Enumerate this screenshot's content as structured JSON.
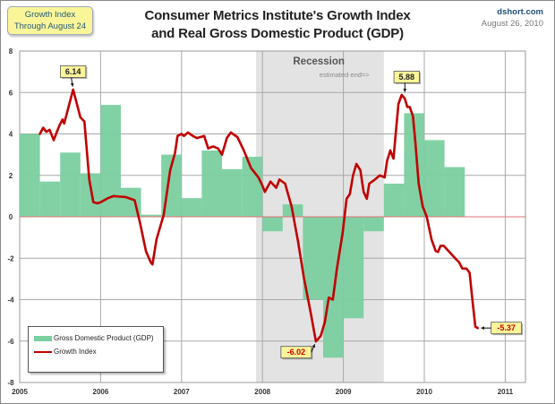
{
  "header": {
    "info_box_line1": "Growth Index",
    "info_box_line2": "Through August 24",
    "title_line1": "Consumer Metrics Institute's Growth Index",
    "title_line2": "and  Real Gross Domestic Product (GDP)",
    "source_site": "dshort.com",
    "source_date": "August 26, 2010"
  },
  "colors": {
    "gdp_bar": "#7acfa0",
    "growth_line": "#c00000",
    "recession_shade": "#e3e3e3",
    "zero_line": "#e07070",
    "callout_bg": "#fbf59a"
  },
  "chart_data": {
    "type": "bar+line",
    "title": "Consumer Metrics Institute's Growth Index and Real Gross Domestic Product (GDP)",
    "xlabel": "",
    "ylabel": "",
    "xlim": [
      2005,
      2011.25
    ],
    "ylim": [
      -8,
      8
    ],
    "x_ticks": [
      "2005",
      "2006",
      "2007",
      "2008",
      "2009",
      "2010",
      "2011"
    ],
    "y_ticks": [
      "8",
      "6",
      "4",
      "2",
      "0",
      "-2",
      "-4",
      "-6",
      "-8"
    ],
    "grid": true,
    "legend_position": "bottom-left",
    "legend": [
      "Gross Domestic Product (GDP)",
      "Growth Index"
    ],
    "recession": {
      "label": "Recession",
      "note": "estimated end=>",
      "start": 2007.92,
      "end": 2009.5
    },
    "series": [
      {
        "name": "Gross Domestic Product (GDP)",
        "type": "bar",
        "quarters": [
          "2005Q1",
          "2005Q2",
          "2005Q3",
          "2005Q4",
          "2006Q1",
          "2006Q2",
          "2006Q3",
          "2006Q4",
          "2007Q1",
          "2007Q2",
          "2007Q3",
          "2007Q4",
          "2008Q1",
          "2008Q2",
          "2008Q3",
          "2008Q4",
          "2009Q1",
          "2009Q2",
          "2009Q3",
          "2009Q4",
          "2010Q1",
          "2010Q2"
        ],
        "values": [
          4.0,
          1.7,
          3.1,
          2.1,
          5.4,
          1.4,
          0.1,
          3.0,
          0.9,
          3.2,
          2.3,
          2.9,
          -0.7,
          0.6,
          -4.0,
          -6.8,
          -4.9,
          -0.7,
          1.6,
          5.0,
          3.7,
          2.4
        ]
      },
      {
        "name": "Growth Index",
        "type": "line",
        "x": [
          2005.25,
          2005.29,
          2005.33,
          2005.37,
          2005.42,
          2005.49,
          2005.53,
          2005.55,
          2005.66,
          2005.75,
          2005.8,
          2005.86,
          2005.91,
          2005.96,
          2006.0,
          2006.09,
          2006.16,
          2006.31,
          2006.42,
          2006.49,
          2006.56,
          2006.62,
          2006.64,
          2006.69,
          2006.78,
          2006.86,
          2006.92,
          2006.95,
          2007.0,
          2007.03,
          2007.08,
          2007.14,
          2007.19,
          2007.28,
          2007.33,
          2007.39,
          2007.45,
          2007.5,
          2007.56,
          2007.61,
          2007.69,
          2007.77,
          2007.86,
          2007.95,
          2008.0,
          2008.03,
          2008.1,
          2008.17,
          2008.21,
          2008.28,
          2008.36,
          2008.44,
          2008.51,
          2008.6,
          2008.66,
          2008.72,
          2008.77,
          2008.82,
          2008.87,
          2008.92,
          2008.99,
          2009.04,
          2009.08,
          2009.12,
          2009.16,
          2009.21,
          2009.25,
          2009.29,
          2009.32,
          2009.39,
          2009.45,
          2009.51,
          2009.54,
          2009.58,
          2009.62,
          2009.64,
          2009.68,
          2009.72,
          2009.76,
          2009.79,
          2009.82,
          2009.86,
          2009.89,
          2009.93,
          2009.98,
          2010.03,
          2010.09,
          2010.14,
          2010.17,
          2010.2,
          2010.24,
          2010.31,
          2010.38,
          2010.43,
          2010.47,
          2010.52,
          2010.56,
          2010.6,
          2010.63,
          2010.66
        ],
        "values": [
          4.0,
          4.3,
          4.1,
          4.2,
          3.7,
          4.4,
          4.7,
          4.5,
          6.14,
          4.8,
          4.6,
          1.8,
          0.7,
          0.65,
          0.7,
          0.9,
          1.0,
          0.95,
          0.8,
          -0.35,
          -1.65,
          -2.2,
          -2.3,
          -1.1,
          0.1,
          2.25,
          3.1,
          3.9,
          4.0,
          3.9,
          4.07,
          3.9,
          3.8,
          3.9,
          3.3,
          3.4,
          3.3,
          3.0,
          3.8,
          4.07,
          3.85,
          3.2,
          2.35,
          1.9,
          1.5,
          1.2,
          1.7,
          1.4,
          1.8,
          1.6,
          0.5,
          -1.2,
          -2.9,
          -4.7,
          -6.02,
          -5.75,
          -5.1,
          -3.9,
          -4.0,
          -2.5,
          -0.8,
          0.87,
          1.1,
          2.0,
          2.55,
          2.25,
          1.2,
          0.87,
          1.6,
          1.8,
          2.0,
          1.9,
          2.7,
          3.2,
          2.8,
          3.75,
          5.45,
          5.88,
          5.7,
          5.3,
          5.3,
          4.85,
          3.55,
          1.6,
          0.5,
          0.0,
          -1.1,
          -1.65,
          -1.7,
          -1.4,
          -1.4,
          -1.7,
          -2.0,
          -2.2,
          -2.5,
          -2.5,
          -2.7,
          -4.2,
          -5.3,
          -5.37
        ]
      }
    ],
    "annotations": [
      {
        "label": "6.14",
        "x": 2005.66,
        "y": 6.14,
        "color": "#222222"
      },
      {
        "label": "5.88",
        "x": 2009.76,
        "y": 5.88,
        "color": "#222222"
      },
      {
        "label": "-6.02",
        "x": 2008.66,
        "y": -6.02,
        "color": "#d00000"
      },
      {
        "label": "-5.37",
        "x": 2010.66,
        "y": -5.37,
        "color": "#d00000"
      }
    ]
  }
}
